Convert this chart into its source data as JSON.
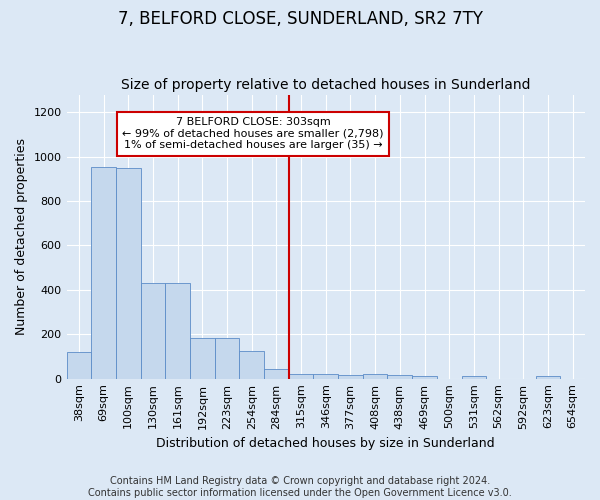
{
  "title": "7, BELFORD CLOSE, SUNDERLAND, SR2 7TY",
  "subtitle": "Size of property relative to detached houses in Sunderland",
  "xlabel": "Distribution of detached houses by size in Sunderland",
  "ylabel": "Number of detached properties",
  "footer_line1": "Contains HM Land Registry data © Crown copyright and database right 2024.",
  "footer_line2": "Contains public sector information licensed under the Open Government Licence v3.0.",
  "bar_labels": [
    "38sqm",
    "69sqm",
    "100sqm",
    "130sqm",
    "161sqm",
    "192sqm",
    "223sqm",
    "254sqm",
    "284sqm",
    "315sqm",
    "346sqm",
    "377sqm",
    "408sqm",
    "438sqm",
    "469sqm",
    "500sqm",
    "531sqm",
    "562sqm",
    "592sqm",
    "623sqm",
    "654sqm"
  ],
  "bar_values": [
    120,
    955,
    950,
    430,
    430,
    185,
    185,
    125,
    45,
    20,
    20,
    15,
    20,
    15,
    10,
    0,
    10,
    0,
    0,
    10,
    0
  ],
  "bar_color": "#c5d8ed",
  "bar_edge_color": "#5b8cc8",
  "annotation_line1": "7 BELFORD CLOSE: 303sqm",
  "annotation_line2": "← 99% of detached houses are smaller (2,798)",
  "annotation_line3": "1% of semi-detached houses are larger (35) →",
  "annotation_box_color": "#ffffff",
  "annotation_box_edge_color": "#cc0000",
  "vline_x_index": 9,
  "vline_color": "#cc0000",
  "ylim": [
    0,
    1280
  ],
  "yticks": [
    0,
    200,
    400,
    600,
    800,
    1000,
    1200
  ],
  "background_color": "#dce8f5",
  "grid_color": "#ffffff",
  "title_fontsize": 12,
  "subtitle_fontsize": 10,
  "axis_label_fontsize": 9,
  "tick_fontsize": 8,
  "annotation_fontsize": 8,
  "footer_fontsize": 7
}
